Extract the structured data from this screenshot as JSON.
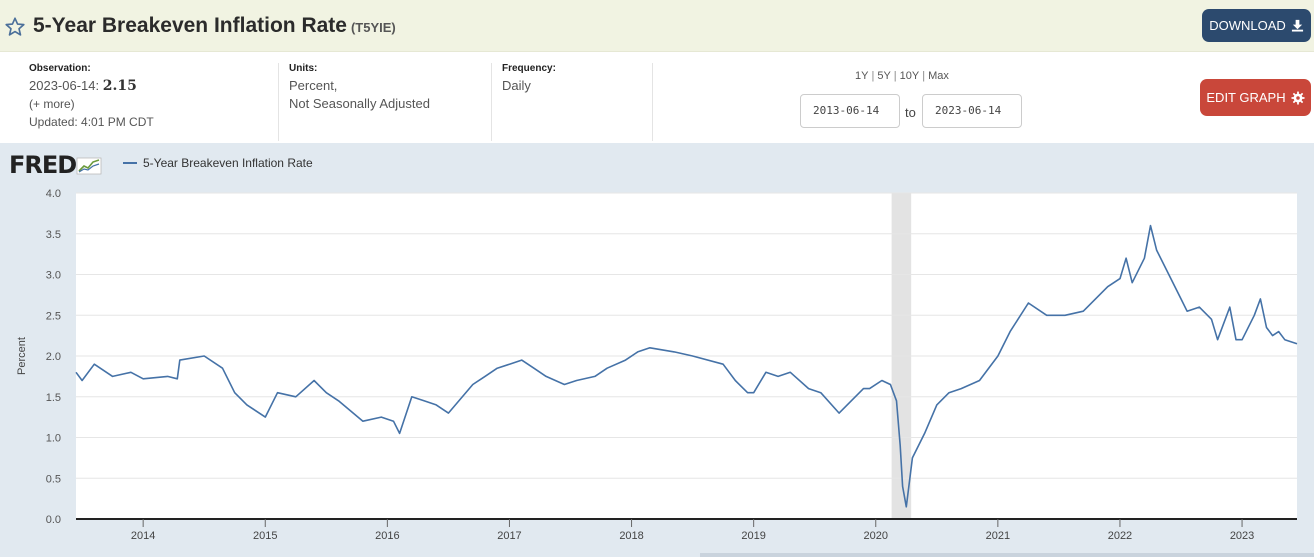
{
  "header": {
    "title": "5-Year Breakeven Inflation Rate",
    "series_id": "(T5YIE)",
    "download_label": "DOWNLOAD",
    "star_icon": "star-outline-icon",
    "download_icon": "download-icon"
  },
  "meta": {
    "observation_label": "Observation:",
    "observation_date": "2023-06-14:",
    "observation_value": "2.15",
    "more_label": "(+ more)",
    "updated": "Updated: 4:01 PM CDT",
    "units_label": "Units:",
    "units_line1": "Percent,",
    "units_line2": "Not Seasonally Adjusted",
    "frequency_label": "Frequency:",
    "frequency_value": "Daily"
  },
  "range": {
    "options": [
      "1Y",
      "5Y",
      "10Y",
      "Max"
    ],
    "start_date": "2013-06-14",
    "end_date": "2023-06-14",
    "to_label": "to",
    "edit_label": "EDIT GRAPH",
    "edit_icon": "gear-icon"
  },
  "legend": {
    "logo_text": "FRED",
    "logo_icon": "fred-chart-icon",
    "series_label": "5-Year Breakeven Inflation Rate"
  },
  "chart_data": {
    "type": "line",
    "ylabel": "Percent",
    "ylim": [
      0,
      4
    ],
    "yticks": [
      "0.0",
      "0.5",
      "1.0",
      "1.5",
      "2.0",
      "2.5",
      "3.0",
      "3.5",
      "4.0"
    ],
    "xlim": [
      2013.45,
      2023.45
    ],
    "xticks": [
      "2014",
      "2015",
      "2016",
      "2017",
      "2018",
      "2019",
      "2020",
      "2021",
      "2022",
      "2023"
    ],
    "recession": [
      2020.13,
      2020.29
    ],
    "line_color": "#4572a7",
    "recession_color": "#e3e3e3",
    "series": [
      {
        "name": "5-Year Breakeven Inflation Rate",
        "x": [
          2013.45,
          2013.5,
          2013.6,
          2013.75,
          2013.9,
          2014.0,
          2014.2,
          2014.28,
          2014.3,
          2014.5,
          2014.65,
          2014.75,
          2014.85,
          2015.0,
          2015.1,
          2015.25,
          2015.4,
          2015.5,
          2015.6,
          2015.8,
          2015.95,
          2016.05,
          2016.1,
          2016.2,
          2016.3,
          2016.4,
          2016.5,
          2016.7,
          2016.8,
          2016.9,
          2017.0,
          2017.1,
          2017.2,
          2017.3,
          2017.45,
          2017.55,
          2017.7,
          2017.8,
          2017.95,
          2018.05,
          2018.15,
          2018.35,
          2018.5,
          2018.75,
          2018.85,
          2018.95,
          2019.0,
          2019.1,
          2019.2,
          2019.3,
          2019.45,
          2019.55,
          2019.7,
          2019.8,
          2019.9,
          2019.95,
          2020.05,
          2020.12,
          2020.17,
          2020.2,
          2020.22,
          2020.25,
          2020.3,
          2020.4,
          2020.5,
          2020.6,
          2020.7,
          2020.85,
          2021.0,
          2021.1,
          2021.25,
          2021.4,
          2021.55,
          2021.7,
          2021.8,
          2021.9,
          2022.0,
          2022.05,
          2022.1,
          2022.2,
          2022.25,
          2022.3,
          2022.4,
          2022.5,
          2022.55,
          2022.65,
          2022.75,
          2022.8,
          2022.9,
          2022.95,
          2023.0,
          2023.1,
          2023.15,
          2023.2,
          2023.25,
          2023.3,
          2023.35,
          2023.45
        ],
        "y": [
          1.8,
          1.7,
          1.9,
          1.75,
          1.8,
          1.72,
          1.75,
          1.72,
          1.95,
          2.0,
          1.85,
          1.55,
          1.4,
          1.25,
          1.55,
          1.5,
          1.7,
          1.55,
          1.45,
          1.2,
          1.25,
          1.2,
          1.05,
          1.5,
          1.45,
          1.4,
          1.3,
          1.65,
          1.75,
          1.85,
          1.9,
          1.95,
          1.85,
          1.75,
          1.65,
          1.7,
          1.75,
          1.85,
          1.95,
          2.05,
          2.1,
          2.05,
          2.0,
          1.9,
          1.7,
          1.55,
          1.55,
          1.8,
          1.75,
          1.8,
          1.6,
          1.55,
          1.3,
          1.45,
          1.6,
          1.6,
          1.7,
          1.65,
          1.45,
          0.9,
          0.4,
          0.15,
          0.75,
          1.05,
          1.4,
          1.55,
          1.6,
          1.7,
          2.0,
          2.3,
          2.65,
          2.5,
          2.5,
          2.55,
          2.7,
          2.85,
          2.95,
          3.2,
          2.9,
          3.2,
          3.6,
          3.3,
          3.0,
          2.7,
          2.55,
          2.6,
          2.45,
          2.2,
          2.6,
          2.2,
          2.2,
          2.5,
          2.7,
          2.35,
          2.25,
          2.3,
          2.2,
          2.15
        ]
      }
    ]
  }
}
